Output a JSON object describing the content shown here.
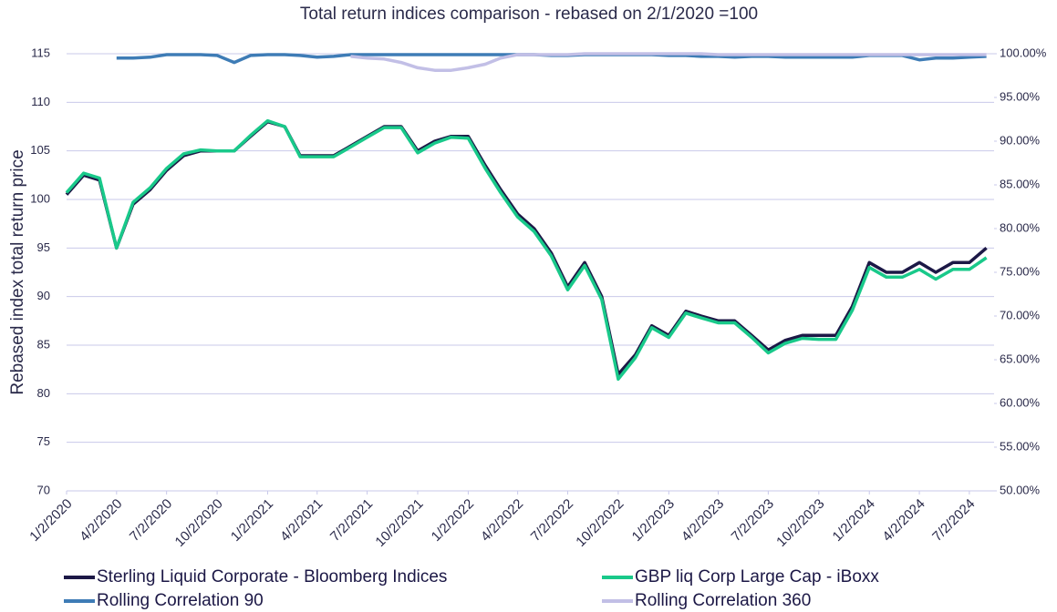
{
  "chart_data": {
    "type": "line",
    "title": "Total return indices comparison - rebased on 2/1/2020 =100",
    "y_label": "Rebased index total return price",
    "x": [
      "1/2/2020",
      "2/2/2020",
      "3/2/2020",
      "4/2/2020",
      "5/2/2020",
      "6/2/2020",
      "7/2/2020",
      "8/2/2020",
      "9/2/2020",
      "10/2/2020",
      "11/2/2020",
      "12/2/2020",
      "1/2/2021",
      "2/2/2021",
      "3/2/2021",
      "4/2/2021",
      "5/2/2021",
      "6/2/2021",
      "7/2/2021",
      "8/2/2021",
      "9/2/2021",
      "10/2/2021",
      "11/2/2021",
      "12/2/2021",
      "1/2/2022",
      "2/2/2022",
      "3/2/2022",
      "4/2/2022",
      "5/2/2022",
      "6/2/2022",
      "7/2/2022",
      "8/2/2022",
      "9/2/2022",
      "10/2/2022",
      "11/2/2022",
      "12/2/2022",
      "1/2/2023",
      "2/2/2023",
      "3/2/2023",
      "4/2/2023",
      "5/2/2023",
      "6/2/2023",
      "7/2/2023",
      "8/2/2023",
      "9/2/2023",
      "10/2/2023",
      "11/2/2023",
      "12/2/2023",
      "1/2/2024",
      "2/2/2024",
      "3/2/2024",
      "4/2/2024",
      "5/2/2024",
      "6/2/2024",
      "7/2/2024",
      "8/2/2024"
    ],
    "xlim": [
      "1/2/2020",
      "8/16/2024"
    ],
    "xticks": [
      "1/2/2020",
      "4/2/2020",
      "7/2/2020",
      "10/2/2020",
      "1/2/2021",
      "4/2/2021",
      "7/2/2021",
      "10/2/2021",
      "1/2/2022",
      "4/2/2022",
      "7/2/2022",
      "10/2/2022",
      "1/2/2023",
      "4/2/2023",
      "7/2/2023",
      "10/2/2023",
      "1/2/2024",
      "4/2/2024",
      "7/2/2024"
    ],
    "ylim": [
      70,
      115
    ],
    "yticks": [
      70,
      75,
      80,
      85,
      90,
      95,
      100,
      105,
      110,
      115
    ],
    "y2lim": [
      50,
      100
    ],
    "y2ticks": [
      {
        "value": 50,
        "label": "50.00%"
      },
      {
        "value": 55,
        "label": "55.00%"
      },
      {
        "value": 60,
        "label": "60.00%"
      },
      {
        "value": 65,
        "label": "65.00%"
      },
      {
        "value": 70,
        "label": "70.00%"
      },
      {
        "value": 75,
        "label": "75.00%"
      },
      {
        "value": 80,
        "label": "80.00%"
      },
      {
        "value": 85,
        "label": "85.00%"
      },
      {
        "value": 90,
        "label": "90.00%"
      },
      {
        "value": 95,
        "label": "95.00%"
      },
      {
        "value": 100,
        "label": "100.00%"
      }
    ],
    "grid": true,
    "legend": "bottom",
    "series": [
      {
        "name": "Sterling Liquid Corporate - Bloomberg Indices",
        "color": "#1c1846",
        "values": [
          100.5,
          102.5,
          102,
          95,
          99.5,
          101,
          103,
          104.5,
          105,
          105,
          105,
          106.5,
          108,
          107.5,
          104.5,
          104.5,
          104.5,
          105.5,
          106.5,
          107.5,
          107.5,
          105,
          106,
          106.5,
          106.5,
          103.5,
          101,
          98.5,
          97,
          94.5,
          91,
          93.5,
          90,
          82,
          84,
          87,
          86,
          88.5,
          88,
          87.5,
          87.5,
          86,
          84.5,
          85.5,
          86,
          86,
          86,
          89,
          93.5,
          92.5,
          92.5,
          93.5,
          92.5,
          93.5,
          93.5,
          95
        ]
      },
      {
        "name": "GBP liq Corp Large Cap - iBoxx",
        "color": "#19c98a",
        "values": [
          100.7,
          102.7,
          102.2,
          95,
          99.7,
          101.2,
          103.2,
          104.7,
          105.1,
          105,
          105,
          106.6,
          108.1,
          107.5,
          104.4,
          104.4,
          104.4,
          105.4,
          106.4,
          107.4,
          107.4,
          104.8,
          105.8,
          106.4,
          106.3,
          103.2,
          100.7,
          98.2,
          96.7,
          94.2,
          90.7,
          93.2,
          89.7,
          81.5,
          83.7,
          86.8,
          85.8,
          88.3,
          87.8,
          87.3,
          87.3,
          85.8,
          84.2,
          85.2,
          85.7,
          85.6,
          85.6,
          88.6,
          93,
          92,
          92,
          92.8,
          91.8,
          92.8,
          92.8,
          94
        ]
      },
      {
        "name": "Rolling Correlation 90",
        "color": "#3e7cb6",
        "axis": "y2",
        "values": [
          null,
          null,
          null,
          99.5,
          99.5,
          99.6,
          99.9,
          99.9,
          99.9,
          99.8,
          99.0,
          99.8,
          99.9,
          99.9,
          99.8,
          99.6,
          99.7,
          99.9,
          99.9,
          99.9,
          99.9,
          99.9,
          99.9,
          99.9,
          99.9,
          99.9,
          99.9,
          99.9,
          99.9,
          99.8,
          99.8,
          99.9,
          99.9,
          99.9,
          99.9,
          99.9,
          99.8,
          99.8,
          99.7,
          99.7,
          99.6,
          99.7,
          99.7,
          99.6,
          99.6,
          99.6,
          99.6,
          99.6,
          99.8,
          99.8,
          99.8,
          99.3,
          99.5,
          99.5,
          99.6,
          99.7
        ]
      },
      {
        "name": "Rolling Correlation 360",
        "color": "#c2bfe6",
        "axis": "y2",
        "values": [
          null,
          null,
          null,
          null,
          null,
          null,
          null,
          null,
          null,
          null,
          null,
          null,
          null,
          null,
          null,
          null,
          null,
          99.7,
          99.5,
          99.4,
          99.0,
          98.4,
          98.1,
          98.1,
          98.4,
          98.8,
          99.5,
          99.9,
          99.9,
          99.9,
          99.9,
          100,
          100,
          100,
          100,
          100,
          100,
          100,
          100,
          99.9,
          99.9,
          99.9,
          99.9,
          99.9,
          99.9,
          99.9,
          99.9,
          99.9,
          99.9,
          99.9,
          99.9,
          99.9,
          99.9,
          99.9,
          99.9,
          99.9
        ]
      }
    ]
  }
}
